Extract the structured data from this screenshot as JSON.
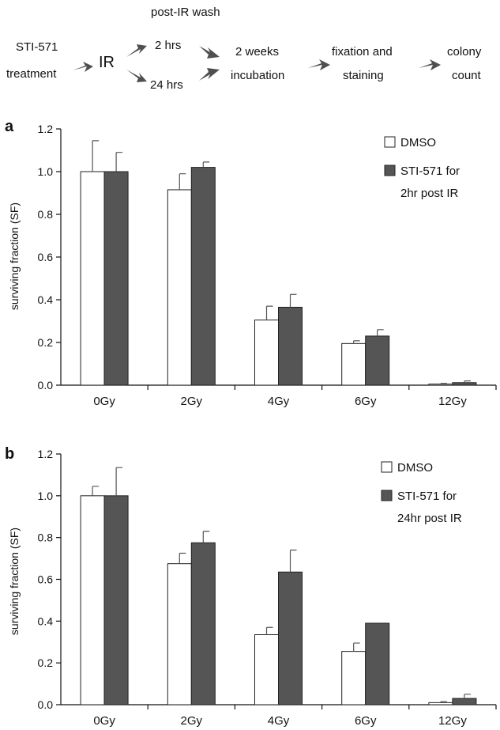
{
  "flow": {
    "step1_line1": "STI-571",
    "step1_line2": "treatment",
    "step2": "IR",
    "wash_label": "post-IR wash",
    "branch1": "2 hrs",
    "branch2": "24 hrs",
    "step3_line1": "2 weeks",
    "step3_line2": "incubation",
    "step4_line1": "fixation and",
    "step4_line2": "staining",
    "step5_line1": "colony",
    "step5_line2": "count"
  },
  "colors": {
    "dmso": "#ffffff",
    "sti": "#555555",
    "bar_stroke": "#222222",
    "arrow": "#4f4f4f"
  },
  "chart_data": [
    {
      "panel": "a",
      "type": "bar",
      "categories": [
        "0Gy",
        "2Gy",
        "4Gy",
        "6Gy",
        "12Gy"
      ],
      "ylabel": "surviving fraction (SF)",
      "ylim": [
        0,
        1.2
      ],
      "yticks": [
        "0.0",
        "0.2",
        "0.4",
        "0.6",
        "0.8",
        "1.0",
        "1.2"
      ],
      "legend_position": "top-right",
      "series": [
        {
          "name": "DMSO",
          "legend_lines": [
            "DMSO"
          ],
          "color": "#ffffff",
          "values": [
            1.0,
            0.915,
            0.305,
            0.195,
            0.005
          ],
          "errors": [
            0.145,
            0.075,
            0.065,
            0.013,
            0.003
          ]
        },
        {
          "name": "STI-571 for 2hr post IR",
          "legend_lines": [
            "STI-571 for",
            "2hr post IR"
          ],
          "color": "#555555",
          "values": [
            1.0,
            1.02,
            0.365,
            0.23,
            0.012
          ],
          "errors": [
            0.09,
            0.025,
            0.06,
            0.03,
            0.008
          ]
        }
      ]
    },
    {
      "panel": "b",
      "type": "bar",
      "categories": [
        "0Gy",
        "2Gy",
        "4Gy",
        "6Gy",
        "12Gy"
      ],
      "ylabel": "surviving fraction (SF)",
      "ylim": [
        0,
        1.2
      ],
      "yticks": [
        "0.0",
        "0.2",
        "0.4",
        "0.6",
        "0.8",
        "1.0",
        "1.2"
      ],
      "legend_position": "top-right",
      "series": [
        {
          "name": "DMSO",
          "legend_lines": [
            "DMSO"
          ],
          "color": "#ffffff",
          "values": [
            1.0,
            0.675,
            0.335,
            0.255,
            0.01
          ],
          "errors": [
            0.045,
            0.05,
            0.035,
            0.04,
            0.005
          ]
        },
        {
          "name": "STI-571 for 24hr post IR",
          "legend_lines": [
            "STI-571 for",
            "24hr post IR"
          ],
          "color": "#555555",
          "values": [
            1.0,
            0.775,
            0.635,
            0.39,
            0.03
          ],
          "errors": [
            0.135,
            0.055,
            0.105,
            0.0,
            0.02
          ]
        }
      ]
    }
  ]
}
